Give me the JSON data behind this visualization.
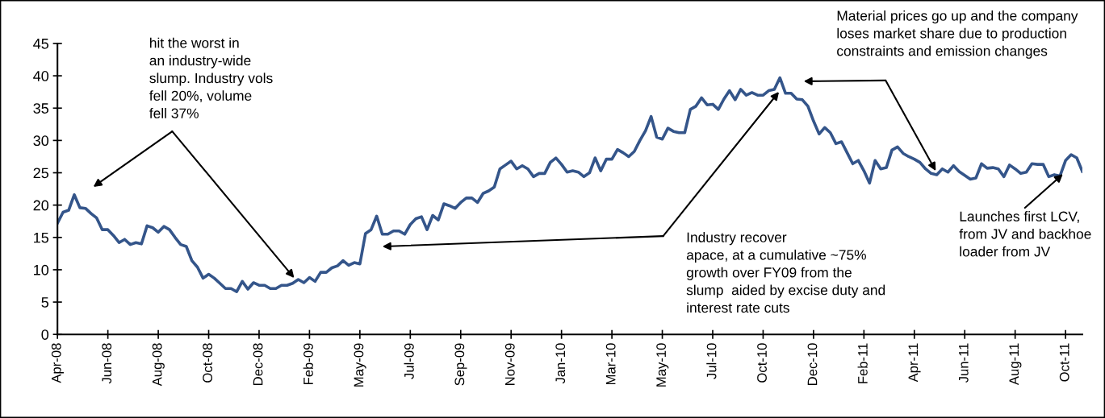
{
  "chart_data": {
    "type": "line",
    "categories": [
      "Apr-08",
      null,
      null,
      null,
      null,
      null,
      null,
      null,
      null,
      "Jun-08",
      null,
      null,
      null,
      null,
      null,
      null,
      null,
      null,
      "Aug-08",
      null,
      null,
      null,
      null,
      null,
      null,
      null,
      null,
      "Oct-08",
      null,
      null,
      null,
      null,
      null,
      null,
      null,
      null,
      "Dec-08",
      null,
      null,
      null,
      null,
      null,
      null,
      null,
      null,
      "Feb-09",
      null,
      null,
      null,
      null,
      null,
      null,
      null,
      null,
      "May-09",
      null,
      null,
      null,
      null,
      null,
      null,
      null,
      null,
      "Jul-09",
      null,
      null,
      null,
      null,
      null,
      null,
      null,
      null,
      "Sep-09",
      null,
      null,
      null,
      null,
      null,
      null,
      null,
      null,
      "Nov-09",
      null,
      null,
      null,
      null,
      null,
      null,
      null,
      null,
      "Jan-10",
      null,
      null,
      null,
      null,
      null,
      null,
      null,
      null,
      "Mar-10",
      null,
      null,
      null,
      null,
      null,
      null,
      null,
      null,
      "May-10",
      null,
      null,
      null,
      null,
      null,
      null,
      null,
      null,
      "Jul-10",
      null,
      null,
      null,
      null,
      null,
      null,
      null,
      null,
      "Oct-10",
      null,
      null,
      null,
      null,
      null,
      null,
      null,
      null,
      "Dec-10",
      null,
      null,
      null,
      null,
      null,
      null,
      null,
      null,
      "Feb-11",
      null,
      null,
      null,
      null,
      null,
      null,
      null,
      null,
      "Apr-11",
      null,
      null,
      null,
      null,
      null,
      null,
      null,
      null,
      "Jun-11",
      null,
      null,
      null,
      null,
      null,
      null,
      null,
      null,
      "Aug-11",
      null,
      null,
      null,
      null,
      null,
      null,
      null,
      null,
      "Oct-11",
      null,
      null,
      null
    ],
    "ylim": [
      0,
      45
    ],
    "yticks": [
      0,
      5,
      10,
      15,
      20,
      25,
      30,
      35,
      40,
      45
    ],
    "grid": false,
    "marker": "none",
    "line_style": "solid",
    "series": [
      {
        "color": "#34558a",
        "values": [
          17.2,
          18.9,
          19.2,
          21.6,
          19.6,
          19.5,
          18.7,
          18.0,
          16.2,
          16.2,
          15.3,
          14.2,
          14.7,
          13.9,
          14.2,
          14.0,
          16.8,
          16.5,
          15.8,
          16.7,
          16.2,
          15.0,
          13.9,
          13.6,
          11.4,
          10.4,
          8.7,
          9.3,
          8.7,
          7.9,
          7.1,
          7.1,
          6.6,
          8.2,
          7.0,
          8.0,
          7.6,
          7.6,
          7.1,
          7.1,
          7.6,
          7.6,
          7.9,
          8.5,
          8.0,
          8.8,
          8.2,
          9.6,
          9.6,
          10.3,
          10.6,
          11.4,
          10.7,
          11.1,
          10.9,
          15.6,
          16.2,
          18.3,
          15.5,
          15.5,
          16.0,
          16.0,
          15.5,
          17.0,
          17.9,
          18.2,
          16.2,
          18.4,
          17.7,
          20.2,
          19.9,
          19.5,
          20.4,
          21.1,
          21.1,
          20.4,
          21.8,
          22.2,
          22.8,
          25.6,
          26.2,
          26.8,
          25.6,
          26.1,
          25.6,
          24.4,
          24.9,
          24.9,
          26.6,
          27.3,
          26.3,
          25.1,
          25.3,
          25.1,
          24.4,
          25.0,
          27.3,
          25.3,
          27.1,
          27.1,
          28.6,
          28.1,
          27.5,
          28.3,
          30.0,
          31.5,
          33.7,
          30.5,
          30.2,
          31.9,
          31.4,
          31.2,
          31.2,
          34.8,
          35.3,
          36.6,
          35.5,
          35.6,
          34.8,
          36.4,
          37.7,
          36.3,
          37.9,
          37.0,
          37.4,
          37.0,
          37.0,
          37.7,
          37.9,
          39.7,
          37.3,
          37.3,
          36.4,
          36.3,
          35.3,
          33.0,
          31.0,
          32.0,
          31.2,
          29.5,
          29.8,
          28.1,
          26.4,
          26.9,
          25.3,
          23.4,
          26.9,
          25.6,
          25.8,
          28.5,
          29.0,
          28.0,
          27.5,
          27.1,
          26.6,
          25.6,
          24.9,
          24.7,
          25.6,
          25.1,
          26.1,
          25.2,
          24.6,
          24.0,
          24.2,
          26.4,
          25.7,
          25.8,
          25.6,
          24.4,
          26.2,
          25.6,
          24.9,
          25.1,
          26.4,
          26.3,
          26.3,
          24.4,
          24.7,
          24.5,
          26.9,
          27.8,
          27.3,
          25.2
        ]
      }
    ],
    "annotations": [
      "hit the worst in\nan industry-wide\nslump. Industry vols\nfell 20%, volume\nfell 37%",
      "Industry recover\napace, at a cumulative ~75%\ngrowth over FY09 from the\nslump  aided by excise duty and\ninterest rate cuts",
      "Material prices go up and the company\nloses market share due to production\nconstraints and emission changes",
      {
        "text": "Launches first LCV,\nfrom JV and backhoe\nloader from JV",
        "y": 24.8
      }
    ]
  }
}
